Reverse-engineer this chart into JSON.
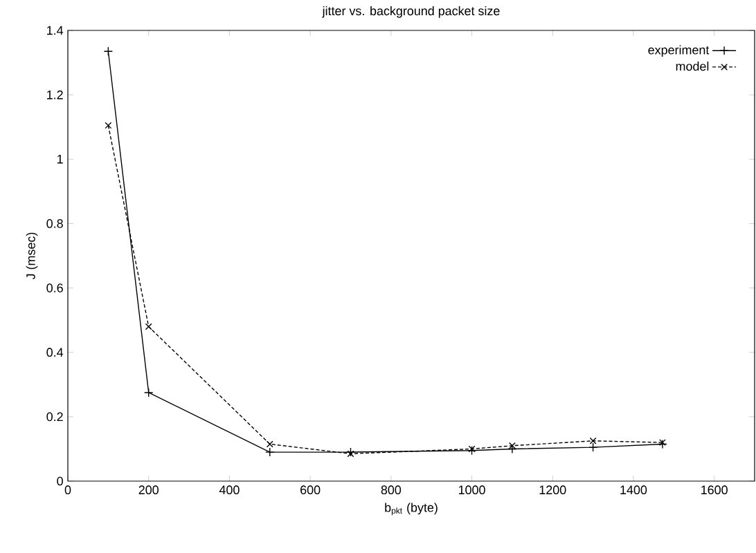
{
  "chart_data": {
    "type": "line",
    "title": "jitter vs. background packet size",
    "xlabel": "b$_{pkt}$ (byte)",
    "ylabel": "J (msec)",
    "x": [
      100,
      200,
      500,
      700,
      1000,
      1100,
      1300,
      1472
    ],
    "series": [
      {
        "name": "experiment",
        "color": "#000000",
        "marker": "plus",
        "line_style": "solid",
        "values": [
          1.335,
          0.275,
          0.09,
          0.09,
          0.095,
          0.1,
          0.105,
          0.115
        ]
      },
      {
        "name": "model",
        "color": "#000000",
        "marker": "cross",
        "line_style": "dashed",
        "values": [
          1.105,
          0.48,
          0.115,
          0.085,
          0.1,
          0.11,
          0.125,
          0.12
        ]
      }
    ],
    "xlim": [
      0,
      1700
    ],
    "ylim": [
      0,
      1.4
    ],
    "xticks": [
      0,
      200,
      400,
      600,
      800,
      1000,
      1200,
      1400,
      1600
    ],
    "yticks": [
      0,
      0.2,
      0.4,
      0.6,
      0.8,
      1,
      1.2,
      1.4
    ],
    "grid": false,
    "legend": "top right"
  }
}
